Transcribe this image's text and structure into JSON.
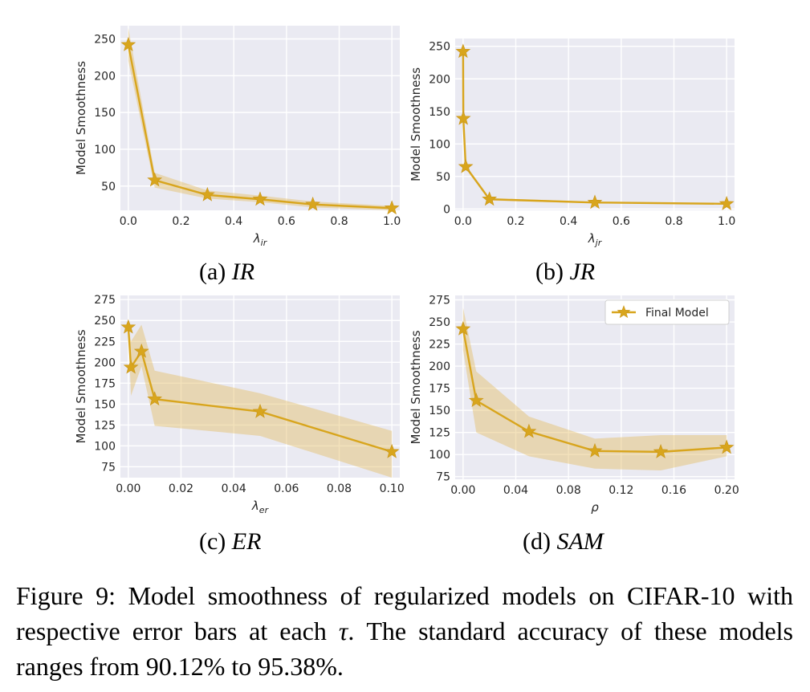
{
  "chart_data": [
    {
      "id": "a",
      "type": "line",
      "caption_prefix": "(a)",
      "caption_name": "IR",
      "xlabel_base": "λ",
      "xlabel_sub": "ir",
      "ylabel": "Model Smoothness",
      "xlim": [
        -0.03,
        1.03
      ],
      "ylim": [
        17,
        268
      ],
      "xticks": [
        0.0,
        0.2,
        0.4,
        0.6,
        0.8,
        1.0
      ],
      "xtick_labels": [
        "0.0",
        "0.2",
        "0.4",
        "0.6",
        "0.8",
        "1.0"
      ],
      "yticks": [
        50,
        100,
        150,
        200,
        250
      ],
      "ytick_labels": [
        "50",
        "100",
        "150",
        "200",
        "250"
      ],
      "x": [
        0.0,
        0.1,
        0.3,
        0.5,
        0.7,
        1.0
      ],
      "y": [
        242,
        58,
        38,
        32,
        25,
        20
      ],
      "lower": [
        220,
        48,
        33,
        28,
        21,
        17
      ],
      "upper": [
        265,
        68,
        44,
        37,
        29,
        23
      ],
      "grid": true,
      "legend": false
    },
    {
      "id": "b",
      "type": "line",
      "caption_prefix": "(b)",
      "caption_name": "JR",
      "xlabel_base": "λ",
      "xlabel_sub": "jr",
      "ylabel": "Model Smoothness",
      "xlim": [
        -0.03,
        1.03
      ],
      "ylim": [
        -2,
        262
      ],
      "xticks": [
        0.0,
        0.2,
        0.4,
        0.6,
        0.8,
        1.0
      ],
      "xtick_labels": [
        "0.0",
        "0.2",
        "0.4",
        "0.6",
        "0.8",
        "1.0"
      ],
      "yticks": [
        0,
        50,
        100,
        150,
        200,
        250
      ],
      "ytick_labels": [
        "0",
        "50",
        "100",
        "150",
        "200",
        "250"
      ],
      "x": [
        0.0,
        0.001,
        0.01,
        0.1,
        0.5,
        1.0
      ],
      "y": [
        242,
        139,
        65,
        15,
        10,
        8
      ],
      "lower": [
        239,
        136,
        62,
        13,
        9,
        7
      ],
      "upper": [
        245,
        142,
        68,
        17,
        11,
        9
      ],
      "grid": true,
      "legend": false
    },
    {
      "id": "c",
      "type": "line",
      "caption_prefix": "(c)",
      "caption_name": "ER",
      "xlabel_base": "λ",
      "xlabel_sub": "er",
      "ylabel": "Model Smoothness",
      "xlim": [
        -0.003,
        0.103
      ],
      "ylim": [
        62,
        280
      ],
      "xticks": [
        0.0,
        0.02,
        0.04,
        0.06,
        0.08,
        0.1
      ],
      "xtick_labels": [
        "0.00",
        "0.02",
        "0.04",
        "0.06",
        "0.08",
        "0.10"
      ],
      "yticks": [
        75,
        100,
        125,
        150,
        175,
        200,
        225,
        250,
        275
      ],
      "ytick_labels": [
        "75",
        "100",
        "125",
        "150",
        "175",
        "200",
        "225",
        "250",
        "275"
      ],
      "x": [
        0.0,
        0.001,
        0.005,
        0.01,
        0.05,
        0.1
      ],
      "y": [
        242,
        194,
        213,
        156,
        141,
        93
      ],
      "lower": [
        240,
        160,
        195,
        124,
        112,
        62
      ],
      "upper": [
        244,
        225,
        245,
        190,
        163,
        118
      ],
      "grid": true,
      "legend": false
    },
    {
      "id": "d",
      "type": "line",
      "caption_prefix": "(d)",
      "caption_name": "SAM",
      "xlabel_base": "ρ",
      "xlabel_sub": "",
      "ylabel": "Model Smoothness",
      "xlim": [
        -0.006,
        0.206
      ],
      "ylim": [
        72,
        280
      ],
      "xticks": [
        0.0,
        0.04,
        0.08,
        0.12,
        0.16,
        0.2
      ],
      "xtick_labels": [
        "0.00",
        "0.04",
        "0.08",
        "0.12",
        "0.16",
        "0.20"
      ],
      "yticks": [
        75,
        100,
        125,
        150,
        175,
        200,
        225,
        250,
        275
      ],
      "ytick_labels": [
        "75",
        "100",
        "125",
        "150",
        "175",
        "200",
        "225",
        "250",
        "275"
      ],
      "x": [
        0.0,
        0.01,
        0.05,
        0.1,
        0.15,
        0.2
      ],
      "y": [
        242,
        161,
        126,
        104,
        103,
        108
      ],
      "lower": [
        218,
        125,
        98,
        84,
        82,
        98
      ],
      "upper": [
        266,
        194,
        143,
        118,
        122,
        122
      ],
      "grid": true,
      "legend": true,
      "legend_label": "Final Model"
    }
  ],
  "figure_caption": {
    "prefix": "Figure 9: Model smoothness of regularized models on CIFAR-10 with respective error bars at each ",
    "symbol": "τ",
    "suffix": ". The standard accuracy of these models ranges from 90.12% to 95.38%."
  },
  "colors": {
    "series": "#d8a51d",
    "band": "#e2b95e",
    "plot_bg": "#eaeaf2"
  }
}
